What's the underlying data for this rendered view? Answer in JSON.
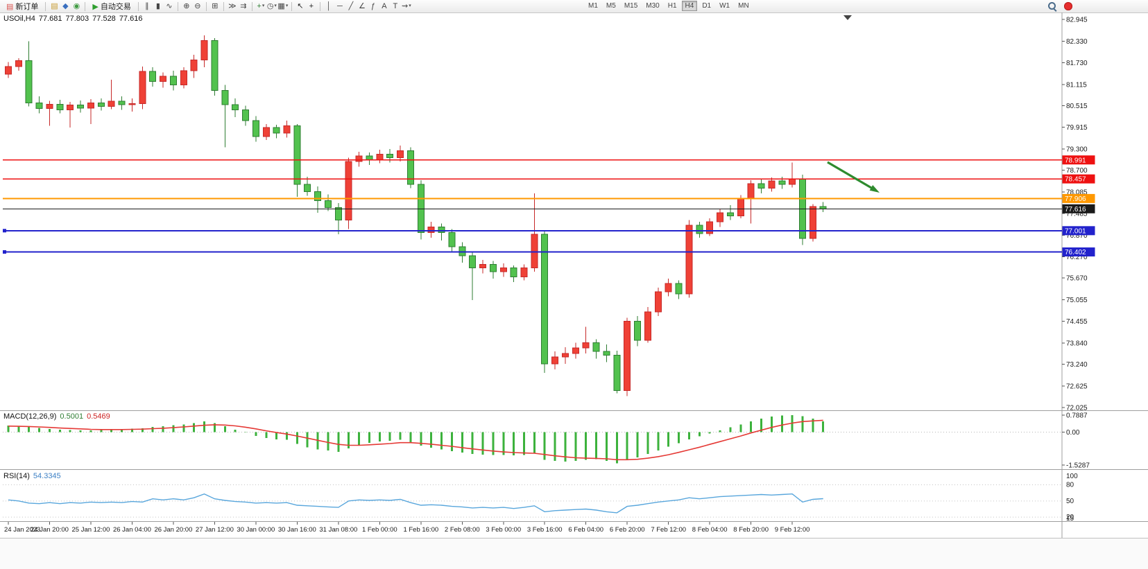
{
  "toolbar": {
    "dropdown_glyph": "▾",
    "items": [
      {
        "t": "btn",
        "name": "new-order-button",
        "glyph": "▤",
        "gcolor": "#d9534f",
        "label": "新订单"
      },
      {
        "t": "sep"
      },
      {
        "t": "ic",
        "name": "chart-window-icon",
        "glyph": "▤",
        "color": "#c79a2e"
      },
      {
        "t": "ic",
        "name": "profile-icon",
        "glyph": "◆",
        "color": "#3a6fbf"
      },
      {
        "t": "ic",
        "name": "community-icon",
        "glyph": "◉",
        "color": "#3f9b42"
      },
      {
        "t": "sep"
      },
      {
        "t": "btn",
        "name": "auto-trading-button",
        "glyph": "▶",
        "gcolor": "#2e9e2e",
        "label": "自动交易"
      },
      {
        "t": "sep"
      },
      {
        "t": "ic",
        "name": "bar-chart-icon",
        "glyph": "∥",
        "color": "#444444"
      },
      {
        "t": "ic",
        "name": "candlestick-chart-icon",
        "glyph": "▮",
        "color": "#444444"
      },
      {
        "t": "ic",
        "name": "line-chart-icon",
        "glyph": "∿",
        "color": "#444444"
      },
      {
        "t": "sep"
      },
      {
        "t": "ic",
        "name": "zoom-in-icon",
        "glyph": "⊕",
        "color": "#444444"
      },
      {
        "t": "ic",
        "name": "zoom-out-icon",
        "glyph": "⊖",
        "color": "#444444"
      },
      {
        "t": "sep"
      },
      {
        "t": "ic",
        "name": "tile-windows-icon",
        "glyph": "⊞",
        "color": "#444444"
      },
      {
        "t": "sep"
      },
      {
        "t": "ic",
        "name": "auto-scroll-icon",
        "glyph": "≫",
        "color": "#444444"
      },
      {
        "t": "ic",
        "name": "chart-shift-icon",
        "glyph": "⇉",
        "color": "#444444"
      },
      {
        "t": "sep"
      },
      {
        "t": "ic",
        "name": "add-indicator-icon",
        "glyph": "+",
        "color": "#2e7d32",
        "dd": true
      },
      {
        "t": "ic",
        "name": "period-selector-icon",
        "glyph": "◷",
        "color": "#444444",
        "dd": true
      },
      {
        "t": "ic",
        "name": "template-icon",
        "glyph": "▦",
        "color": "#444444",
        "dd": true
      },
      {
        "t": "sep"
      },
      {
        "t": "ic",
        "name": "cursor-icon",
        "glyph": "↖",
        "color": "#222222"
      },
      {
        "t": "ic",
        "name": "crosshair-icon",
        "glyph": "+",
        "color": "#222222"
      },
      {
        "t": "sep"
      },
      {
        "t": "ic",
        "name": "vertical-line-icon",
        "glyph": "│",
        "color": "#444444"
      },
      {
        "t": "ic",
        "name": "horizontal-line-icon",
        "glyph": "─",
        "color": "#444444"
      },
      {
        "t": "ic",
        "name": "trendline-icon",
        "glyph": "╱",
        "color": "#444444"
      },
      {
        "t": "ic",
        "name": "equidistant-channel-icon",
        "glyph": "∠",
        "color": "#444444"
      },
      {
        "t": "ic",
        "name": "fibonacci-icon",
        "glyph": "ƒ",
        "color": "#444444"
      },
      {
        "t": "ic",
        "name": "text-icon",
        "glyph": "A",
        "color": "#444444"
      },
      {
        "t": "ic",
        "name": "text-label-icon",
        "glyph": "T",
        "color": "#444444"
      },
      {
        "t": "ic",
        "name": "arrows-tool-icon",
        "glyph": "⇝",
        "color": "#444444",
        "dd": true
      }
    ],
    "timeframes": [
      "M1",
      "M5",
      "M15",
      "M30",
      "H1",
      "H4",
      "D1",
      "W1",
      "MN"
    ],
    "active_timeframe": "H4"
  },
  "chart_data": {
    "type": "candlestick",
    "symbol": "USOil",
    "timeframe": "H4",
    "title": "USOil,H4",
    "current_ohlc": {
      "open": "77.681",
      "high": "77.803",
      "low": "77.528",
      "close": "77.616"
    },
    "price_axis_labels": [
      "82.945",
      "82.330",
      "81.730",
      "81.115",
      "80.515",
      "79.915",
      "79.300",
      "78.700",
      "78.085",
      "77.485",
      "76.870",
      "76.270",
      "75.670",
      "75.055",
      "74.455",
      "73.840",
      "73.240",
      "72.625",
      "72.025"
    ],
    "price_axis_range": [
      82.945,
      72.025
    ],
    "time_axis_labels": [
      "24 Jan 2023",
      "24 Jan 20:00",
      "25 Jan 12:00",
      "26 Jan 04:00",
      "26 Jan 20:00",
      "27 Jan 12:00",
      "30 Jan 00:00",
      "30 Jan 16:00",
      "31 Jan 08:00",
      "1 Feb 00:00",
      "1 Feb 16:00",
      "2 Feb 08:00",
      "3 Feb 00:00",
      "3 Feb 16:00",
      "6 Feb 04:00",
      "6 Feb 20:00",
      "7 Feb 12:00",
      "8 Feb 04:00",
      "8 Feb 20:00",
      "9 Feb 12:00"
    ],
    "colors": {
      "bull_stroke": "#c62828",
      "bull_fill": "#ef4136",
      "bear_stroke": "#2e7d32",
      "bear_fill": "#52c24e"
    },
    "candles_ohlc": [
      [
        81.4,
        81.75,
        81.3,
        81.62
      ],
      [
        81.62,
        81.85,
        81.5,
        81.78
      ],
      [
        81.78,
        82.33,
        80.5,
        80.6
      ],
      [
        80.6,
        80.78,
        80.3,
        80.44
      ],
      [
        80.44,
        80.65,
        79.95,
        80.56
      ],
      [
        80.56,
        80.68,
        80.3,
        80.4
      ],
      [
        80.4,
        80.62,
        79.9,
        80.54
      ],
      [
        80.54,
        80.66,
        80.32,
        80.45
      ],
      [
        80.45,
        80.7,
        80.0,
        80.6
      ],
      [
        80.6,
        80.72,
        80.38,
        80.5
      ],
      [
        80.5,
        81.25,
        80.42,
        80.64
      ],
      [
        80.64,
        80.78,
        80.4,
        80.55
      ],
      [
        80.55,
        80.72,
        80.35,
        80.58
      ],
      [
        80.58,
        81.62,
        80.42,
        81.48
      ],
      [
        81.48,
        81.6,
        81.05,
        81.2
      ],
      [
        81.2,
        81.45,
        81.02,
        81.35
      ],
      [
        81.35,
        81.5,
        80.95,
        81.1
      ],
      [
        81.1,
        81.6,
        81.0,
        81.5
      ],
      [
        81.5,
        81.95,
        81.3,
        81.8
      ],
      [
        81.8,
        82.5,
        81.6,
        82.35
      ],
      [
        82.35,
        82.42,
        80.8,
        80.95
      ],
      [
        80.95,
        81.1,
        79.35,
        80.55
      ],
      [
        80.55,
        80.72,
        80.2,
        80.4
      ],
      [
        80.4,
        80.52,
        79.95,
        80.1
      ],
      [
        80.1,
        80.22,
        79.5,
        79.65
      ],
      [
        79.65,
        80.0,
        79.55,
        79.9
      ],
      [
        79.9,
        79.98,
        79.6,
        79.75
      ],
      [
        79.75,
        80.1,
        79.62,
        79.95
      ],
      [
        79.95,
        80.0,
        77.95,
        78.3
      ],
      [
        78.3,
        78.52,
        77.98,
        78.1
      ],
      [
        78.1,
        78.25,
        77.5,
        77.85
      ],
      [
        77.85,
        78.02,
        77.55,
        77.65
      ],
      [
        77.65,
        77.78,
        76.9,
        77.3
      ],
      [
        77.3,
        79.05,
        77.05,
        78.95
      ],
      [
        78.95,
        79.22,
        78.8,
        79.1
      ],
      [
        79.1,
        79.2,
        78.85,
        79.0
      ],
      [
        79.0,
        79.28,
        78.9,
        79.15
      ],
      [
        79.15,
        79.3,
        78.92,
        79.05
      ],
      [
        79.05,
        79.4,
        78.95,
        79.25
      ],
      [
        79.25,
        79.35,
        78.2,
        78.3
      ],
      [
        78.3,
        78.42,
        76.75,
        76.95
      ],
      [
        76.95,
        77.25,
        76.8,
        77.1
      ],
      [
        77.1,
        77.2,
        76.72,
        76.95
      ],
      [
        76.95,
        77.05,
        76.4,
        76.55
      ],
      [
        76.55,
        76.68,
        76.1,
        76.3
      ],
      [
        76.3,
        76.42,
        75.05,
        75.95
      ],
      [
        75.95,
        76.18,
        75.8,
        76.05
      ],
      [
        76.05,
        76.15,
        75.65,
        75.85
      ],
      [
        75.85,
        76.08,
        75.7,
        75.95
      ],
      [
        75.95,
        76.02,
        75.55,
        75.7
      ],
      [
        75.7,
        76.05,
        75.6,
        75.95
      ],
      [
        75.95,
        78.05,
        75.85,
        76.9
      ],
      [
        76.9,
        77.0,
        73.0,
        73.25
      ],
      [
        73.25,
        73.6,
        73.1,
        73.45
      ],
      [
        73.45,
        73.72,
        73.25,
        73.55
      ],
      [
        73.55,
        73.85,
        73.4,
        73.7
      ],
      [
        73.7,
        74.3,
        73.55,
        73.85
      ],
      [
        73.85,
        73.95,
        73.4,
        73.6
      ],
      [
        73.6,
        73.8,
        73.3,
        73.5
      ],
      [
        73.5,
        73.62,
        72.42,
        72.5
      ],
      [
        72.5,
        74.55,
        72.35,
        74.45
      ],
      [
        74.45,
        74.6,
        73.75,
        73.92
      ],
      [
        73.92,
        74.85,
        73.85,
        74.72
      ],
      [
        74.72,
        75.4,
        74.6,
        75.28
      ],
      [
        75.28,
        75.65,
        75.15,
        75.52
      ],
      [
        75.52,
        75.6,
        75.08,
        75.22
      ],
      [
        75.22,
        77.3,
        75.12,
        77.15
      ],
      [
        77.15,
        77.25,
        76.8,
        76.92
      ],
      [
        76.92,
        77.35,
        76.85,
        77.25
      ],
      [
        77.25,
        77.6,
        77.1,
        77.5
      ],
      [
        77.5,
        77.72,
        77.3,
        77.42
      ],
      [
        77.42,
        78.0,
        77.35,
        77.9
      ],
      [
        77.9,
        78.42,
        77.2,
        78.32
      ],
      [
        78.32,
        78.45,
        78.05,
        78.2
      ],
      [
        78.2,
        78.5,
        78.1,
        78.4
      ],
      [
        78.4,
        78.52,
        78.18,
        78.3
      ],
      [
        78.3,
        78.92,
        78.22,
        78.45
      ],
      [
        78.45,
        78.58,
        76.6,
        76.78
      ],
      [
        76.78,
        77.75,
        76.7,
        77.68
      ],
      [
        77.681,
        77.803,
        77.528,
        77.616
      ]
    ],
    "horizontal_lines": [
      {
        "price": 78.991,
        "label": "78.991",
        "color": "#ee1111",
        "width": 1.4,
        "anchors": false
      },
      {
        "price": 78.457,
        "label": "78.457",
        "color": "#ee1111",
        "width": 1.4,
        "anchors": false
      },
      {
        "price": 77.906,
        "label": "77.906",
        "color": "#ff9800",
        "width": 2,
        "anchors": false
      },
      {
        "price": 77.001,
        "label": "77.001",
        "color": "#2222cc",
        "width": 2,
        "anchors": true
      },
      {
        "price": 76.402,
        "label": "76.402",
        "color": "#2222cc",
        "width": 2,
        "anchors": true
      }
    ],
    "current_price_line": {
      "price": 77.616,
      "label": "77.616",
      "color": "#1a1a1a"
    },
    "annotation_arrow": {
      "name": "down-trend-arrow",
      "color": "#2e8b2e"
    },
    "macd": {
      "label": "MACD(12,26,9)",
      "value_main": "0.5001",
      "value_signal": "0.5469",
      "axis_labels": [
        "0.7887",
        "0.00",
        "-1.5287"
      ],
      "scale": [
        0.7887,
        -1.5287
      ],
      "histogram_color": "#3cb23c",
      "signal_color": "#e53935",
      "histogram": [
        0.3,
        0.28,
        0.25,
        0.2,
        0.15,
        0.12,
        0.1,
        0.08,
        0.08,
        0.1,
        0.12,
        0.14,
        0.16,
        0.18,
        0.24,
        0.28,
        0.32,
        0.36,
        0.42,
        0.5,
        0.42,
        0.28,
        0.12,
        -0.02,
        -0.18,
        -0.28,
        -0.33,
        -0.36,
        -0.55,
        -0.7,
        -0.8,
        -0.86,
        -0.92,
        -0.75,
        -0.6,
        -0.5,
        -0.44,
        -0.4,
        -0.36,
        -0.48,
        -0.62,
        -0.72,
        -0.8,
        -0.88,
        -0.95,
        -1.02,
        -1.05,
        -1.06,
        -1.06,
        -1.08,
        -1.06,
        -1.0,
        -1.28,
        -1.34,
        -1.36,
        -1.33,
        -1.28,
        -1.26,
        -1.33,
        -1.45,
        -1.3,
        -1.18,
        -1.02,
        -0.86,
        -0.68,
        -0.52,
        -0.34,
        -0.2,
        -0.06,
        0.08,
        0.22,
        0.36,
        0.5,
        0.62,
        0.72,
        0.78,
        0.79,
        0.74,
        0.62,
        0.5
      ],
      "signal": [
        0.28,
        0.27,
        0.26,
        0.24,
        0.22,
        0.19,
        0.17,
        0.15,
        0.13,
        0.12,
        0.12,
        0.12,
        0.13,
        0.14,
        0.16,
        0.18,
        0.21,
        0.24,
        0.28,
        0.32,
        0.34,
        0.33,
        0.29,
        0.23,
        0.15,
        0.06,
        -0.02,
        -0.09,
        -0.18,
        -0.28,
        -0.38,
        -0.48,
        -0.57,
        -0.61,
        -0.61,
        -0.59,
        -0.56,
        -0.53,
        -0.49,
        -0.49,
        -0.52,
        -0.56,
        -0.61,
        -0.66,
        -0.72,
        -0.78,
        -0.83,
        -0.88,
        -0.92,
        -0.95,
        -0.97,
        -0.98,
        -1.04,
        -1.1,
        -1.15,
        -1.19,
        -1.21,
        -1.22,
        -1.24,
        -1.28,
        -1.28,
        -1.26,
        -1.21,
        -1.14,
        -1.05,
        -0.94,
        -0.82,
        -0.7,
        -0.57,
        -0.44,
        -0.31,
        -0.18,
        -0.04,
        0.09,
        0.22,
        0.33,
        0.42,
        0.49,
        0.52,
        0.55
      ]
    },
    "rsi": {
      "label": "RSI(14)",
      "value": "54.3345",
      "axis_labels": [
        "100",
        "80",
        "50",
        "20",
        "15"
      ],
      "scale": [
        100,
        15
      ],
      "levels": [
        80,
        50,
        20
      ],
      "line_color": "#58a6dc",
      "values": [
        52,
        50,
        46,
        45,
        47,
        45,
        47,
        46,
        48,
        47,
        48,
        47,
        49,
        48,
        54,
        52,
        54,
        52,
        56,
        63,
        54,
        51,
        49,
        48,
        46,
        47,
        46,
        47,
        42,
        41,
        40,
        39,
        38,
        50,
        52,
        51,
        52,
        51,
        53,
        47,
        42,
        43,
        42,
        40,
        39,
        37,
        38,
        37,
        38,
        36,
        38,
        41,
        30,
        32,
        33,
        34,
        35,
        33,
        30,
        28,
        40,
        42,
        45,
        48,
        50,
        52,
        56,
        54,
        56,
        58,
        59,
        60,
        61,
        62,
        61,
        62,
        63,
        48,
        53,
        54.3
      ]
    }
  }
}
